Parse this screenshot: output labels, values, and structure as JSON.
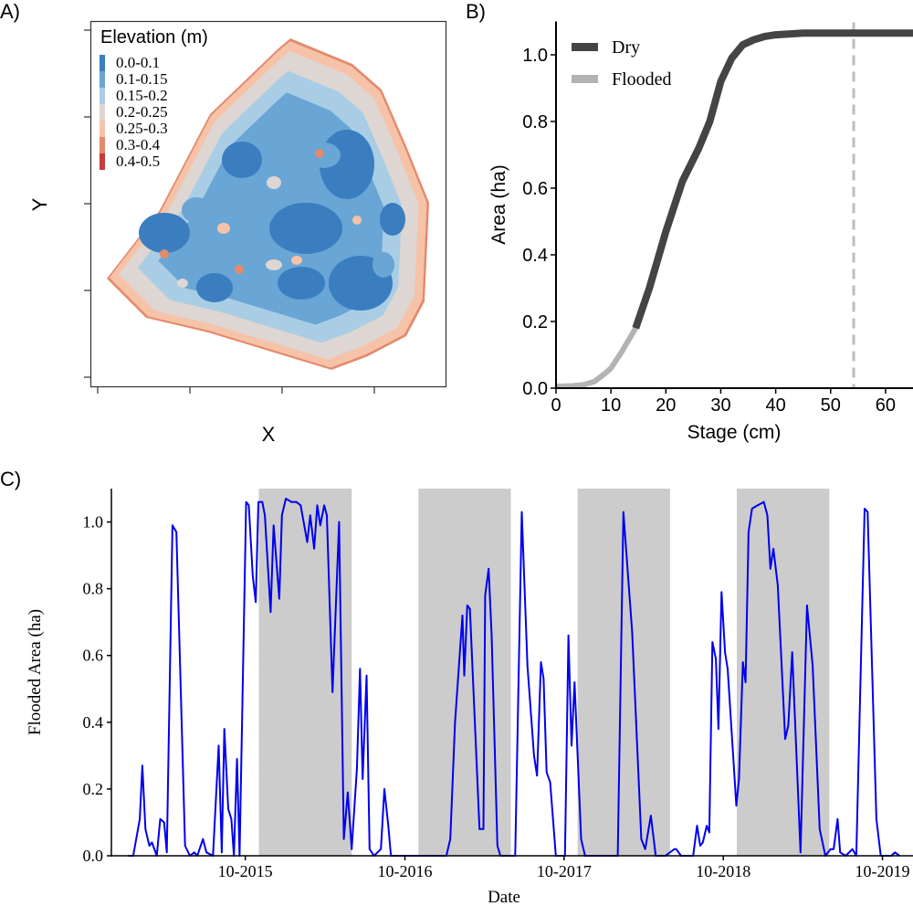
{
  "panel_labels": [
    "A)",
    "B)",
    "C)"
  ],
  "chart_data": [
    {
      "type": "heatmap",
      "panel": "A)",
      "xlabel": "X",
      "ylabel": "Y",
      "legend": {
        "title": "Elevation (m)",
        "position": "top-left",
        "entries": [
          {
            "label": "0.0-0.1",
            "color": "#3a7ec0"
          },
          {
            "label": "0.1-0.15",
            "color": "#69a5d5"
          },
          {
            "label": "0.15-0.2",
            "color": "#a9cde4"
          },
          {
            "label": "0.2-0.25",
            "color": "#ddd6d2"
          },
          {
            "label": "0.25-0.3",
            "color": "#f6c3a8"
          },
          {
            "label": "0.3-0.4",
            "color": "#e48a6c"
          },
          {
            "label": "0.4-0.5",
            "color": "#c83c3c"
          }
        ]
      }
    },
    {
      "type": "line",
      "panel": "B)",
      "xlabel": "Stage (cm)",
      "ylabel": "Area (ha)",
      "xlim": [
        0,
        65
      ],
      "ylim": [
        0,
        1.1
      ],
      "xticks": [
        "0",
        "10",
        "20",
        "30",
        "40",
        "50",
        "60"
      ],
      "yticks": [
        "0.0",
        "0.2",
        "0.4",
        "0.6",
        "0.8",
        "1.0"
      ],
      "legend_position": "top-left",
      "vline": {
        "x": 54.2,
        "style": "dashed",
        "color": "#bdbdbd"
      },
      "series": [
        {
          "name": "Flooded",
          "color": "#b3b3b3",
          "x": [
            0,
            3,
            5,
            7,
            9,
            10,
            12,
            14.5
          ],
          "y": [
            0.005,
            0.007,
            0.01,
            0.02,
            0.045,
            0.06,
            0.11,
            0.18
          ]
        },
        {
          "name": "Dry",
          "color": "#444444",
          "x": [
            14.5,
            17,
            20,
            23,
            26,
            28,
            30,
            32,
            34,
            36,
            38,
            40,
            45,
            50,
            55,
            60,
            65
          ],
          "y": [
            0.18,
            0.3,
            0.47,
            0.62,
            0.72,
            0.8,
            0.92,
            0.99,
            1.03,
            1.045,
            1.055,
            1.06,
            1.065,
            1.065,
            1.065,
            1.065,
            1.065
          ]
        }
      ]
    },
    {
      "type": "line",
      "panel": "C)",
      "xlabel": "Date",
      "ylabel": "Flooded Area (ha)",
      "xlim": [
        "2014-11-28",
        "2019-12-10"
      ],
      "ylim": [
        0,
        1.1
      ],
      "xticks": [
        {
          "date": "2015-10-01",
          "label": "10-2015"
        },
        {
          "date": "2016-10-01",
          "label": "10-2016"
        },
        {
          "date": "2017-10-01",
          "label": "10-2017"
        },
        {
          "date": "2018-10-01",
          "label": "10-2018"
        },
        {
          "date": "2019-10-01",
          "label": "10-2019"
        }
      ],
      "yticks": [
        "0.0",
        "0.2",
        "0.4",
        "0.6",
        "0.8",
        "1.0"
      ],
      "shaded_periods": [
        [
          "2015-11-01",
          "2016-06-01"
        ],
        [
          "2016-11-01",
          "2017-06-01"
        ],
        [
          "2017-11-01",
          "2018-06-01"
        ],
        [
          "2018-11-01",
          "2019-06-01"
        ]
      ],
      "shade_color": "#cccccc",
      "line_color": "#0000ee",
      "points": [
        [
          "2015-01-06",
          0
        ],
        [
          "2015-01-17",
          0
        ],
        [
          "2015-02-01",
          0.11
        ],
        [
          "2015-02-07",
          0.27
        ],
        [
          "2015-02-14",
          0.08
        ],
        [
          "2015-02-23",
          0.03
        ],
        [
          "2015-03-01",
          0.04
        ],
        [
          "2015-03-12",
          0
        ],
        [
          "2015-03-20",
          0.11
        ],
        [
          "2015-03-29",
          0.1
        ],
        [
          "2015-04-04",
          0.01
        ],
        [
          "2015-04-17",
          0.99
        ],
        [
          "2015-04-26",
          0.97
        ],
        [
          "2015-05-16",
          0.03
        ],
        [
          "2015-05-27",
          0
        ],
        [
          "2015-06-06",
          0.01
        ],
        [
          "2015-06-13",
          0
        ],
        [
          "2015-06-26",
          0.05
        ],
        [
          "2015-07-04",
          0.01
        ],
        [
          "2015-07-19",
          0
        ],
        [
          "2015-08-01",
          0.33
        ],
        [
          "2015-08-08",
          0.01
        ],
        [
          "2015-08-14",
          0.38
        ],
        [
          "2015-08-23",
          0.14
        ],
        [
          "2015-08-30",
          0.11
        ],
        [
          "2015-09-05",
          0
        ],
        [
          "2015-09-12",
          0.29
        ],
        [
          "2015-09-18",
          0
        ],
        [
          "2015-10-03",
          1.06
        ],
        [
          "2015-10-09",
          1.05
        ],
        [
          "2015-10-18",
          0.84
        ],
        [
          "2015-10-25",
          0.76
        ],
        [
          "2015-10-31",
          1.06
        ],
        [
          "2015-11-09",
          1.06
        ],
        [
          "2015-11-15",
          1.02
        ],
        [
          "2015-11-28",
          0.73
        ],
        [
          "2015-12-05",
          0.99
        ],
        [
          "2015-12-18",
          0.77
        ],
        [
          "2015-12-24",
          1.02
        ],
        [
          "2016-01-02",
          1.07
        ],
        [
          "2016-01-15",
          1.06
        ],
        [
          "2016-01-26",
          1.06
        ],
        [
          "2016-02-05",
          1.05
        ],
        [
          "2016-02-20",
          0.94
        ],
        [
          "2016-02-27",
          1.02
        ],
        [
          "2016-03-07",
          0.92
        ],
        [
          "2016-03-14",
          1.05
        ],
        [
          "2016-03-21",
          0.99
        ],
        [
          "2016-03-30",
          1.05
        ],
        [
          "2016-04-05",
          1.02
        ],
        [
          "2016-04-18",
          0.49
        ],
        [
          "2016-05-03",
          1.0
        ],
        [
          "2016-05-14",
          0.05
        ],
        [
          "2016-05-23",
          0.19
        ],
        [
          "2016-06-01",
          0.02
        ],
        [
          "2016-06-13",
          0.26
        ],
        [
          "2016-06-20",
          0.56
        ],
        [
          "2016-06-26",
          0.23
        ],
        [
          "2016-07-05",
          0.54
        ],
        [
          "2016-07-12",
          0.02
        ],
        [
          "2016-07-22",
          0
        ],
        [
          "2016-08-07",
          0.02
        ],
        [
          "2016-08-15",
          0.2
        ],
        [
          "2016-08-24",
          0.09
        ],
        [
          "2016-08-30",
          0
        ],
        [
          "2016-09-29",
          0
        ],
        [
          "2017-01-04",
          0
        ],
        [
          "2017-01-13",
          0.05
        ],
        [
          "2017-01-24",
          0.4
        ],
        [
          "2017-02-10",
          0.72
        ],
        [
          "2017-02-14",
          0.54
        ],
        [
          "2017-02-21",
          0.75
        ],
        [
          "2017-02-27",
          0.74
        ],
        [
          "2017-03-21",
          0.08
        ],
        [
          "2017-03-30",
          0.08
        ],
        [
          "2017-04-03",
          0.78
        ],
        [
          "2017-04-11",
          0.86
        ],
        [
          "2017-04-18",
          0.66
        ],
        [
          "2017-05-01",
          0.03
        ],
        [
          "2017-05-08",
          0
        ],
        [
          "2017-05-25",
          0
        ],
        [
          "2017-06-11",
          0
        ],
        [
          "2017-06-26",
          1.03
        ],
        [
          "2017-07-09",
          0.57
        ],
        [
          "2017-07-24",
          0.3
        ],
        [
          "2017-07-31",
          0.24
        ],
        [
          "2017-08-09",
          0.58
        ],
        [
          "2017-08-15",
          0.53
        ],
        [
          "2017-08-22",
          0.25
        ],
        [
          "2017-08-30",
          0.22
        ],
        [
          "2017-09-12",
          0
        ],
        [
          "2017-10-03",
          0
        ],
        [
          "2017-10-11",
          0.66
        ],
        [
          "2017-10-18",
          0.33
        ],
        [
          "2017-10-25",
          0.52
        ],
        [
          "2017-11-09",
          0.05
        ],
        [
          "2017-11-18",
          0
        ],
        [
          "2018-02-01",
          0
        ],
        [
          "2018-02-14",
          1.03
        ],
        [
          "2018-03-06",
          0.67
        ],
        [
          "2018-03-27",
          0.05
        ],
        [
          "2018-04-05",
          0.02
        ],
        [
          "2018-04-18",
          0.12
        ],
        [
          "2018-04-29",
          0
        ],
        [
          "2018-05-21",
          0
        ],
        [
          "2018-06-11",
          0.02
        ],
        [
          "2018-06-15",
          0.02
        ],
        [
          "2018-06-26",
          0
        ],
        [
          "2018-07-24",
          0
        ],
        [
          "2018-08-02",
          0.09
        ],
        [
          "2018-08-09",
          0.03
        ],
        [
          "2018-08-15",
          0.04
        ],
        [
          "2018-08-24",
          0.09
        ],
        [
          "2018-08-30",
          0.07
        ],
        [
          "2018-09-06",
          0.64
        ],
        [
          "2018-09-14",
          0.59
        ],
        [
          "2018-09-20",
          0.38
        ],
        [
          "2018-09-27",
          0.79
        ],
        [
          "2018-10-05",
          0.61
        ],
        [
          "2018-10-11",
          0.56
        ],
        [
          "2018-10-31",
          0.15
        ],
        [
          "2018-11-06",
          0.23
        ],
        [
          "2018-11-15",
          0.58
        ],
        [
          "2018-11-21",
          0.52
        ],
        [
          "2018-11-28",
          0.97
        ],
        [
          "2018-12-06",
          1.04
        ],
        [
          "2018-12-19",
          1.05
        ],
        [
          "2019-01-02",
          1.06
        ],
        [
          "2019-01-10",
          1.02
        ],
        [
          "2019-01-17",
          0.86
        ],
        [
          "2019-01-24",
          0.92
        ],
        [
          "2019-02-03",
          0.81
        ],
        [
          "2019-02-20",
          0.35
        ],
        [
          "2019-02-27",
          0.39
        ],
        [
          "2019-03-08",
          0.61
        ],
        [
          "2019-03-27",
          0.01
        ],
        [
          "2019-04-11",
          0.75
        ],
        [
          "2019-04-24",
          0.57
        ],
        [
          "2019-05-10",
          0.08
        ],
        [
          "2019-05-23",
          0
        ],
        [
          "2019-06-04",
          0.02
        ],
        [
          "2019-06-11",
          0.02
        ],
        [
          "2019-06-20",
          0.11
        ],
        [
          "2019-06-26",
          0.01
        ],
        [
          "2019-07-09",
          0
        ],
        [
          "2019-07-24",
          0.02
        ],
        [
          "2019-08-02",
          0
        ],
        [
          "2019-08-21",
          1.04
        ],
        [
          "2019-08-28",
          1.03
        ],
        [
          "2019-09-17",
          0.11
        ],
        [
          "2019-09-27",
          0
        ],
        [
          "2019-10-21",
          0
        ],
        [
          "2019-10-30",
          0.01
        ],
        [
          "2019-11-09",
          0
        ]
      ]
    }
  ]
}
